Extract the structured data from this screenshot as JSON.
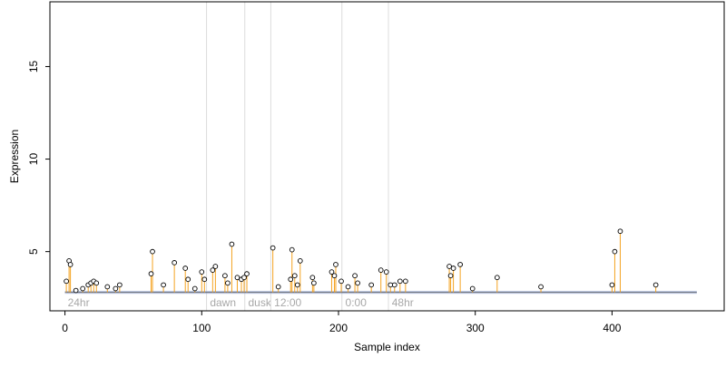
{
  "chart_data": {
    "type": "scatter",
    "title": "",
    "xlabel": "Sample index",
    "ylabel": "Expression",
    "xlim": [
      -11,
      482
    ],
    "ylim": [
      1.8,
      18.5
    ],
    "x_ticks": [
      0,
      100,
      200,
      300,
      400
    ],
    "y_ticks": [
      5,
      10,
      15
    ],
    "grid": false,
    "legend": "none",
    "baseline": 2.8,
    "colors": {
      "stem": "#f4a321",
      "baseline_band": "#9fb3e3",
      "section_line": "#dcdcdc",
      "point_stroke": "#000000",
      "point_fill": "#ffffff",
      "section_text": "#a8a8a8"
    },
    "sections": [
      {
        "x": 0,
        "label": "24hr"
      },
      {
        "x": 104,
        "label": "dawn"
      },
      {
        "x": 132,
        "label": "dusk"
      },
      {
        "x": 151,
        "label": "12:00"
      },
      {
        "x": 203,
        "label": "0:00"
      },
      {
        "x": 237,
        "label": "48hr"
      }
    ],
    "points": [
      {
        "x": 1,
        "y": 3.4
      },
      {
        "x": 3,
        "y": 4.5
      },
      {
        "x": 4,
        "y": 4.3
      },
      {
        "x": 8,
        "y": 2.9
      },
      {
        "x": 13,
        "y": 3.0
      },
      {
        "x": 17,
        "y": 3.2
      },
      {
        "x": 19,
        "y": 3.3
      },
      {
        "x": 21,
        "y": 3.4
      },
      {
        "x": 23,
        "y": 3.3
      },
      {
        "x": 31,
        "y": 3.1
      },
      {
        "x": 37,
        "y": 3.0
      },
      {
        "x": 40,
        "y": 3.2
      },
      {
        "x": 63,
        "y": 3.8
      },
      {
        "x": 64,
        "y": 5.0
      },
      {
        "x": 72,
        "y": 3.2
      },
      {
        "x": 80,
        "y": 4.4
      },
      {
        "x": 88,
        "y": 4.1
      },
      {
        "x": 90,
        "y": 3.5
      },
      {
        "x": 95,
        "y": 3.0
      },
      {
        "x": 100,
        "y": 3.9
      },
      {
        "x": 102,
        "y": 3.5
      },
      {
        "x": 108,
        "y": 4.0
      },
      {
        "x": 110,
        "y": 4.2
      },
      {
        "x": 117,
        "y": 3.7
      },
      {
        "x": 119,
        "y": 3.3
      },
      {
        "x": 122,
        "y": 5.4
      },
      {
        "x": 126,
        "y": 3.6
      },
      {
        "x": 129,
        "y": 3.5
      },
      {
        "x": 131,
        "y": 3.6
      },
      {
        "x": 133,
        "y": 3.8
      },
      {
        "x": 152,
        "y": 5.2
      },
      {
        "x": 156,
        "y": 3.1
      },
      {
        "x": 165,
        "y": 3.5
      },
      {
        "x": 166,
        "y": 5.1
      },
      {
        "x": 168,
        "y": 3.7
      },
      {
        "x": 170,
        "y": 3.2
      },
      {
        "x": 172,
        "y": 4.5
      },
      {
        "x": 181,
        "y": 3.6
      },
      {
        "x": 182,
        "y": 3.3
      },
      {
        "x": 195,
        "y": 3.9
      },
      {
        "x": 197,
        "y": 3.7
      },
      {
        "x": 198,
        "y": 4.3
      },
      {
        "x": 202,
        "y": 3.4
      },
      {
        "x": 207,
        "y": 3.1
      },
      {
        "x": 212,
        "y": 3.7
      },
      {
        "x": 214,
        "y": 3.3
      },
      {
        "x": 224,
        "y": 3.2
      },
      {
        "x": 231,
        "y": 4.0
      },
      {
        "x": 235,
        "y": 3.9
      },
      {
        "x": 238,
        "y": 3.2
      },
      {
        "x": 241,
        "y": 3.2
      },
      {
        "x": 245,
        "y": 3.4
      },
      {
        "x": 249,
        "y": 3.4
      },
      {
        "x": 281,
        "y": 4.2
      },
      {
        "x": 282,
        "y": 3.7
      },
      {
        "x": 284,
        "y": 4.1
      },
      {
        "x": 289,
        "y": 4.3
      },
      {
        "x": 298,
        "y": 3.0
      },
      {
        "x": 316,
        "y": 3.6
      },
      {
        "x": 348,
        "y": 3.1
      },
      {
        "x": 400,
        "y": 3.2
      },
      {
        "x": 402,
        "y": 5.0
      },
      {
        "x": 406,
        "y": 6.1
      },
      {
        "x": 432,
        "y": 3.2
      }
    ]
  }
}
